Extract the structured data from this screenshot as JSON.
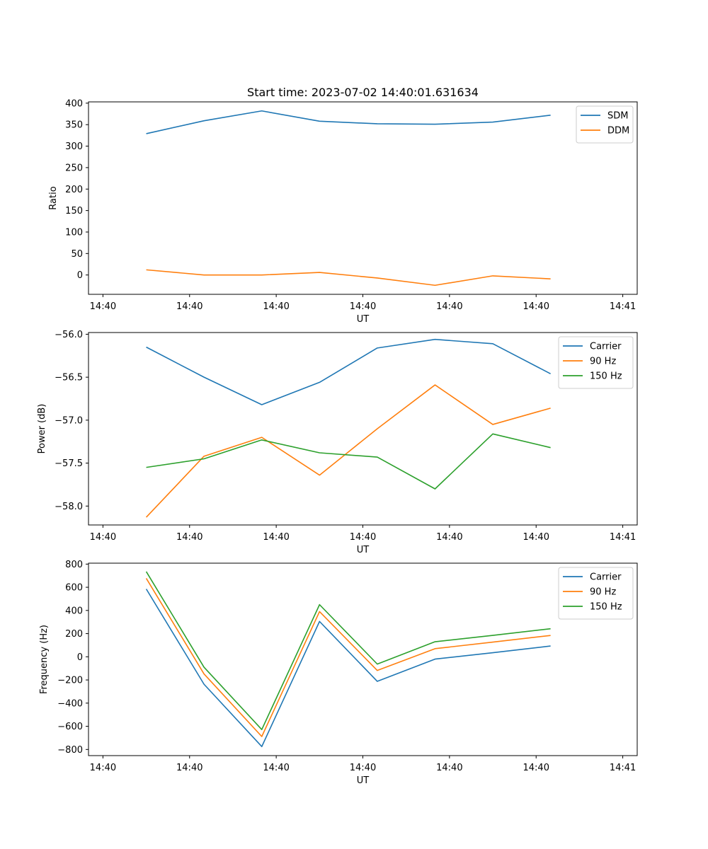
{
  "figure": {
    "title": "Start time: 2023-07-02 14:40:01.631634"
  },
  "colors": {
    "blue": "#1f77b4",
    "orange": "#ff7f0e",
    "green": "#2ca02c"
  },
  "chart_data": [
    {
      "type": "line",
      "title": "Start time: 2023-07-02 14:40:01.631634",
      "xlabel": "UT",
      "ylabel": "Ratio",
      "x": [
        1,
        2,
        3,
        4,
        5,
        6,
        7,
        8
      ],
      "xlim": [
        0,
        9.5
      ],
      "xticks": [
        0.25,
        1.75,
        3.25,
        4.75,
        6.25,
        7.75,
        9.25
      ],
      "xtick_labels": [
        "14:40",
        "14:40",
        "14:40",
        "14:40",
        "14:40",
        "14:40",
        "14:41"
      ],
      "ylim": [
        -45,
        403
      ],
      "yticks": [
        0,
        50,
        100,
        150,
        200,
        250,
        300,
        350,
        400
      ],
      "ytick_labels": [
        "0",
        "50",
        "100",
        "150",
        "200",
        "250",
        "300",
        "350",
        "400"
      ],
      "legend": "top-right",
      "series": [
        {
          "name": "SDM",
          "color": "#1f77b4",
          "values": [
            329,
            359,
            382,
            358,
            352,
            351,
            356,
            372
          ]
        },
        {
          "name": "DDM",
          "color": "#ff7f0e",
          "values": [
            12,
            0,
            0,
            6,
            -7,
            -24,
            -2,
            -9
          ]
        }
      ]
    },
    {
      "type": "line",
      "xlabel": "UT",
      "ylabel": "Power (dB)",
      "x": [
        1,
        2,
        3,
        4,
        5,
        6,
        7,
        8
      ],
      "xlim": [
        0,
        9.5
      ],
      "xticks": [
        0.25,
        1.75,
        3.25,
        4.75,
        6.25,
        7.75,
        9.25
      ],
      "xtick_labels": [
        "14:40",
        "14:40",
        "14:40",
        "14:40",
        "14:40",
        "14:40",
        "14:41"
      ],
      "ylim": [
        -58.22,
        -55.98
      ],
      "yticks": [
        -56.0,
        -56.5,
        -57.0,
        -57.5,
        -58.0
      ],
      "ytick_labels": [
        "−56.0",
        "−56.5",
        "−57.0",
        "−57.5",
        "−58.0"
      ],
      "legend": "top-right",
      "series": [
        {
          "name": "Carrier",
          "color": "#1f77b4",
          "values": [
            -56.15,
            -56.5,
            -56.82,
            -56.56,
            -56.16,
            -56.06,
            -56.11,
            -56.46
          ]
        },
        {
          "name": "90 Hz",
          "color": "#ff7f0e",
          "values": [
            -58.13,
            -57.42,
            -57.2,
            -57.64,
            -57.1,
            -56.59,
            -57.05,
            -56.86
          ]
        },
        {
          "name": "150 Hz",
          "color": "#2ca02c",
          "values": [
            -57.55,
            -57.45,
            -57.23,
            -57.38,
            -57.43,
            -57.8,
            -57.16,
            -57.32
          ]
        }
      ]
    },
    {
      "type": "line",
      "xlabel": "UT",
      "ylabel": "Frequency (Hz)",
      "x": [
        1,
        2,
        3,
        4,
        5,
        6,
        7,
        8
      ],
      "xlim": [
        0,
        9.5
      ],
      "xticks": [
        0.25,
        1.75,
        3.25,
        4.75,
        6.25,
        7.75,
        9.25
      ],
      "xtick_labels": [
        "14:40",
        "14:40",
        "14:40",
        "14:40",
        "14:40",
        "14:40",
        "14:41"
      ],
      "ylim": [
        -853,
        808
      ],
      "yticks": [
        800,
        600,
        400,
        200,
        0,
        -200,
        -400,
        -600,
        -800
      ],
      "ytick_labels": [
        "800",
        "600",
        "400",
        "200",
        "0",
        "−200",
        "−400",
        "−600",
        "−800"
      ],
      "legend": "top-right",
      "series": [
        {
          "name": "Carrier",
          "color": "#1f77b4",
          "values": [
            585,
            -237,
            -775,
            305,
            -212,
            -20,
            35,
            93
          ]
        },
        {
          "name": "90 Hz",
          "color": "#ff7f0e",
          "values": [
            677,
            -148,
            -688,
            390,
            -118,
            70,
            127,
            184
          ]
        },
        {
          "name": "150 Hz",
          "color": "#2ca02c",
          "values": [
            735,
            -90,
            -628,
            450,
            -63,
            130,
            185,
            242
          ]
        }
      ]
    }
  ]
}
